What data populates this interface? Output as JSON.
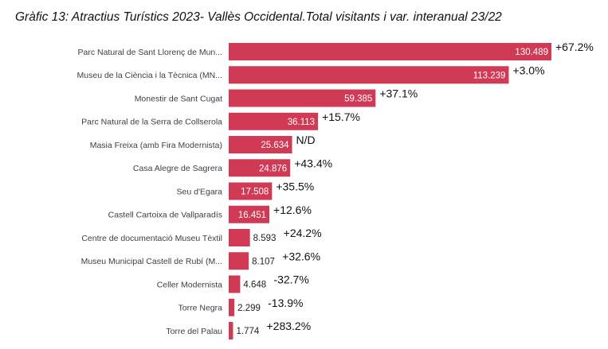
{
  "title": "Gràfic 13: Atractius Turístics 2023- Vallès Occidental.Total visitants i var. interanual 23/22",
  "chart_data": {
    "type": "bar",
    "orientation": "horizontal",
    "bar_color": "#d03a55",
    "categories": [
      "Parc Natural de Sant Llorenç de Mun...",
      "Museu de la Ciència i la Tècnica (MN...",
      "Monestir de Sant Cugat",
      "Parc Natural de la Serra de Collserola",
      "Masia Freixa (amb Fira Modernista)",
      "Casa Alegre de Sagrera",
      "Seu d'Egara",
      "Castell Cartoixa de Vallparadís",
      "Centre de documentació Museu Tèxtil",
      "Museu Municipal Castell de Rubí (M...",
      "Celler Modernista",
      "Torre Negra",
      "Torre del Palau"
    ],
    "values": [
      130489,
      113239,
      59385,
      36113,
      25634,
      24876,
      17508,
      16451,
      8593,
      8107,
      4648,
      2299,
      1774
    ],
    "value_labels": [
      "130.489",
      "113.239",
      "59.385",
      "36.113",
      "25.634",
      "24.876",
      "17.508",
      "16.451",
      "8.593",
      "8.107",
      "4.648",
      "2.299",
      "1.774"
    ],
    "variation_labels": [
      "+67.2%",
      "+3.0%",
      "+37.1%",
      "+15.7%",
      "N/D",
      "+43.4%",
      "+35.5%",
      "+12.6%",
      "+24.2%",
      "+32.6%",
      "-32.7%",
      "-13.9%",
      "+283.2%"
    ]
  }
}
